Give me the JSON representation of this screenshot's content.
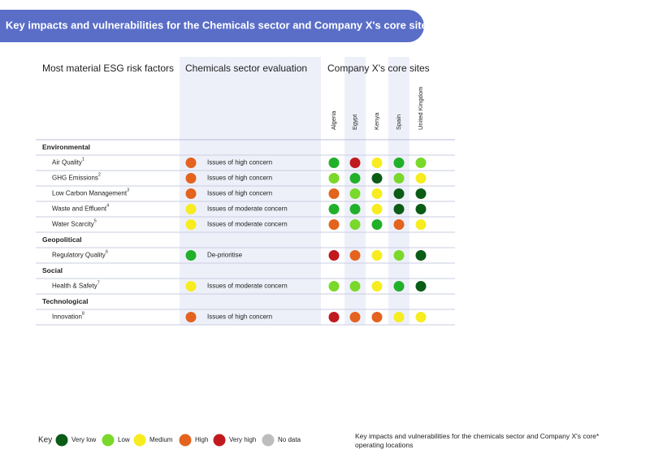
{
  "header": {
    "title": "Key impacts and vulnerabilities for the Chemicals sector and Company X's core sites"
  },
  "columns": {
    "factors": "Most material ESG risk factors",
    "evaluation": "Chemicals sector evaluation",
    "sites": "Company X's core sites",
    "site_names": [
      "Algeria",
      "Egypt",
      "Kenya",
      "Spain",
      "United Kingdom"
    ]
  },
  "sections": [
    {
      "title": "Environmental",
      "rows": [
        {
          "label": "Air Quality",
          "note": "1",
          "evaluation": "Issues of high concern",
          "evaluation_color": "#e3631f",
          "site_colors": [
            "#21b02a",
            "#c01a1f",
            "#f7ec1f",
            "#21b02a",
            "#79d82a"
          ]
        },
        {
          "label": "GHG Emissions",
          "note": "2",
          "evaluation": "Issues of high concern",
          "evaluation_color": "#e3631f",
          "site_colors": [
            "#79d82a",
            "#21b02a",
            "#0a5c16",
            "#79d82a",
            "#f7ec1f"
          ]
        },
        {
          "label": "Low Carbon Management",
          "note": "3",
          "evaluation": "Issues of high concern",
          "evaluation_color": "#e3631f",
          "site_colors": [
            "#e3631f",
            "#79d82a",
            "#f7ec1f",
            "#0a5c16",
            "#0a5c16"
          ]
        },
        {
          "label": "Waste and Effluent",
          "note": "4",
          "evaluation": "Issues of moderate concern",
          "evaluation_color": "#f7ec1f",
          "site_colors": [
            "#21b02a",
            "#21b02a",
            "#f7ec1f",
            "#0a5c16",
            "#0a5c16"
          ]
        },
        {
          "label": "Water Scarcity",
          "note": "5",
          "evaluation": "Issues of moderate concern",
          "evaluation_color": "#f7ec1f",
          "site_colors": [
            "#e3631f",
            "#79d82a",
            "#21b02a",
            "#e3631f",
            "#f7ec1f"
          ]
        }
      ]
    },
    {
      "title": "Geopolitical",
      "rows": [
        {
          "label": "Regulatory Quality",
          "note": "6",
          "evaluation": "De-prioritise",
          "evaluation_color": "#21b02a",
          "site_colors": [
            "#c01a1f",
            "#e3631f",
            "#f7ec1f",
            "#79d82a",
            "#0a5c16"
          ]
        }
      ]
    },
    {
      "title": "Social",
      "rows": [
        {
          "label": "Health & Safety",
          "note": "7",
          "evaluation": "Issues of moderate concern",
          "evaluation_color": "#f7ec1f",
          "site_colors": [
            "#79d82a",
            "#79d82a",
            "#f7ec1f",
            "#21b02a",
            "#0a5c16"
          ]
        }
      ]
    },
    {
      "title": "Technological",
      "rows": [
        {
          "label": "Innovation",
          "note": "8",
          "evaluation": "Issues of high concern",
          "evaluation_color": "#e3631f",
          "site_colors": [
            "#c01a1f",
            "#e3631f",
            "#e3631f",
            "#f7ec1f",
            "#f7ec1f"
          ]
        }
      ]
    }
  ],
  "key": {
    "title": "Key",
    "items": [
      {
        "label": "Very low",
        "color": "#0a5c16"
      },
      {
        "label": "Low",
        "color": "#79d82a"
      },
      {
        "label": "Medium",
        "color": "#f7ec1f"
      },
      {
        "label": "High",
        "color": "#e3631f"
      },
      {
        "label": "Very high",
        "color": "#c01a1f"
      },
      {
        "label": "No data",
        "color": "#bdbdbd"
      }
    ]
  },
  "footnote": "Key impacts and vulnerabilities for the chemicals sector and Company X's core* operating locations"
}
